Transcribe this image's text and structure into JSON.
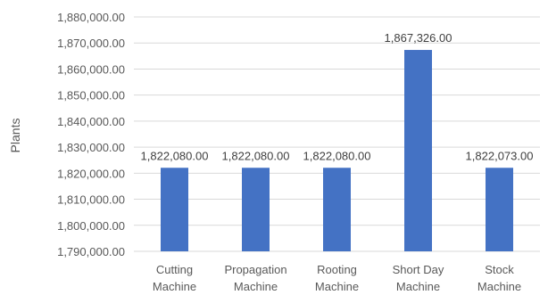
{
  "chart_data": {
    "type": "bar",
    "categories": [
      [
        "Cutting",
        "Machine"
      ],
      [
        "Propagation",
        "Machine"
      ],
      [
        "Rooting",
        "Machine"
      ],
      [
        "Short Day",
        "Machine"
      ],
      [
        "Stock",
        "Machine"
      ]
    ],
    "values": [
      1822080,
      1822080,
      1822080,
      1867326,
      1822073
    ],
    "data_labels": [
      "1,822,080.00",
      "1,822,080.00",
      "1,822,080.00",
      "1,867,326.00",
      "1,822,073.00"
    ],
    "ylabel": "Plants",
    "ylim": [
      1790000,
      1880000
    ],
    "ystep": 10000,
    "yticks": [
      "1,790,000.00",
      "1,800,000.00",
      "1,810,000.00",
      "1,820,000.00",
      "1,830,000.00",
      "1,840,000.00",
      "1,850,000.00",
      "1,860,000.00",
      "1,870,000.00",
      "1,880,000.00"
    ],
    "grid": true,
    "legend": "none",
    "bar_color": "#4472c4"
  }
}
